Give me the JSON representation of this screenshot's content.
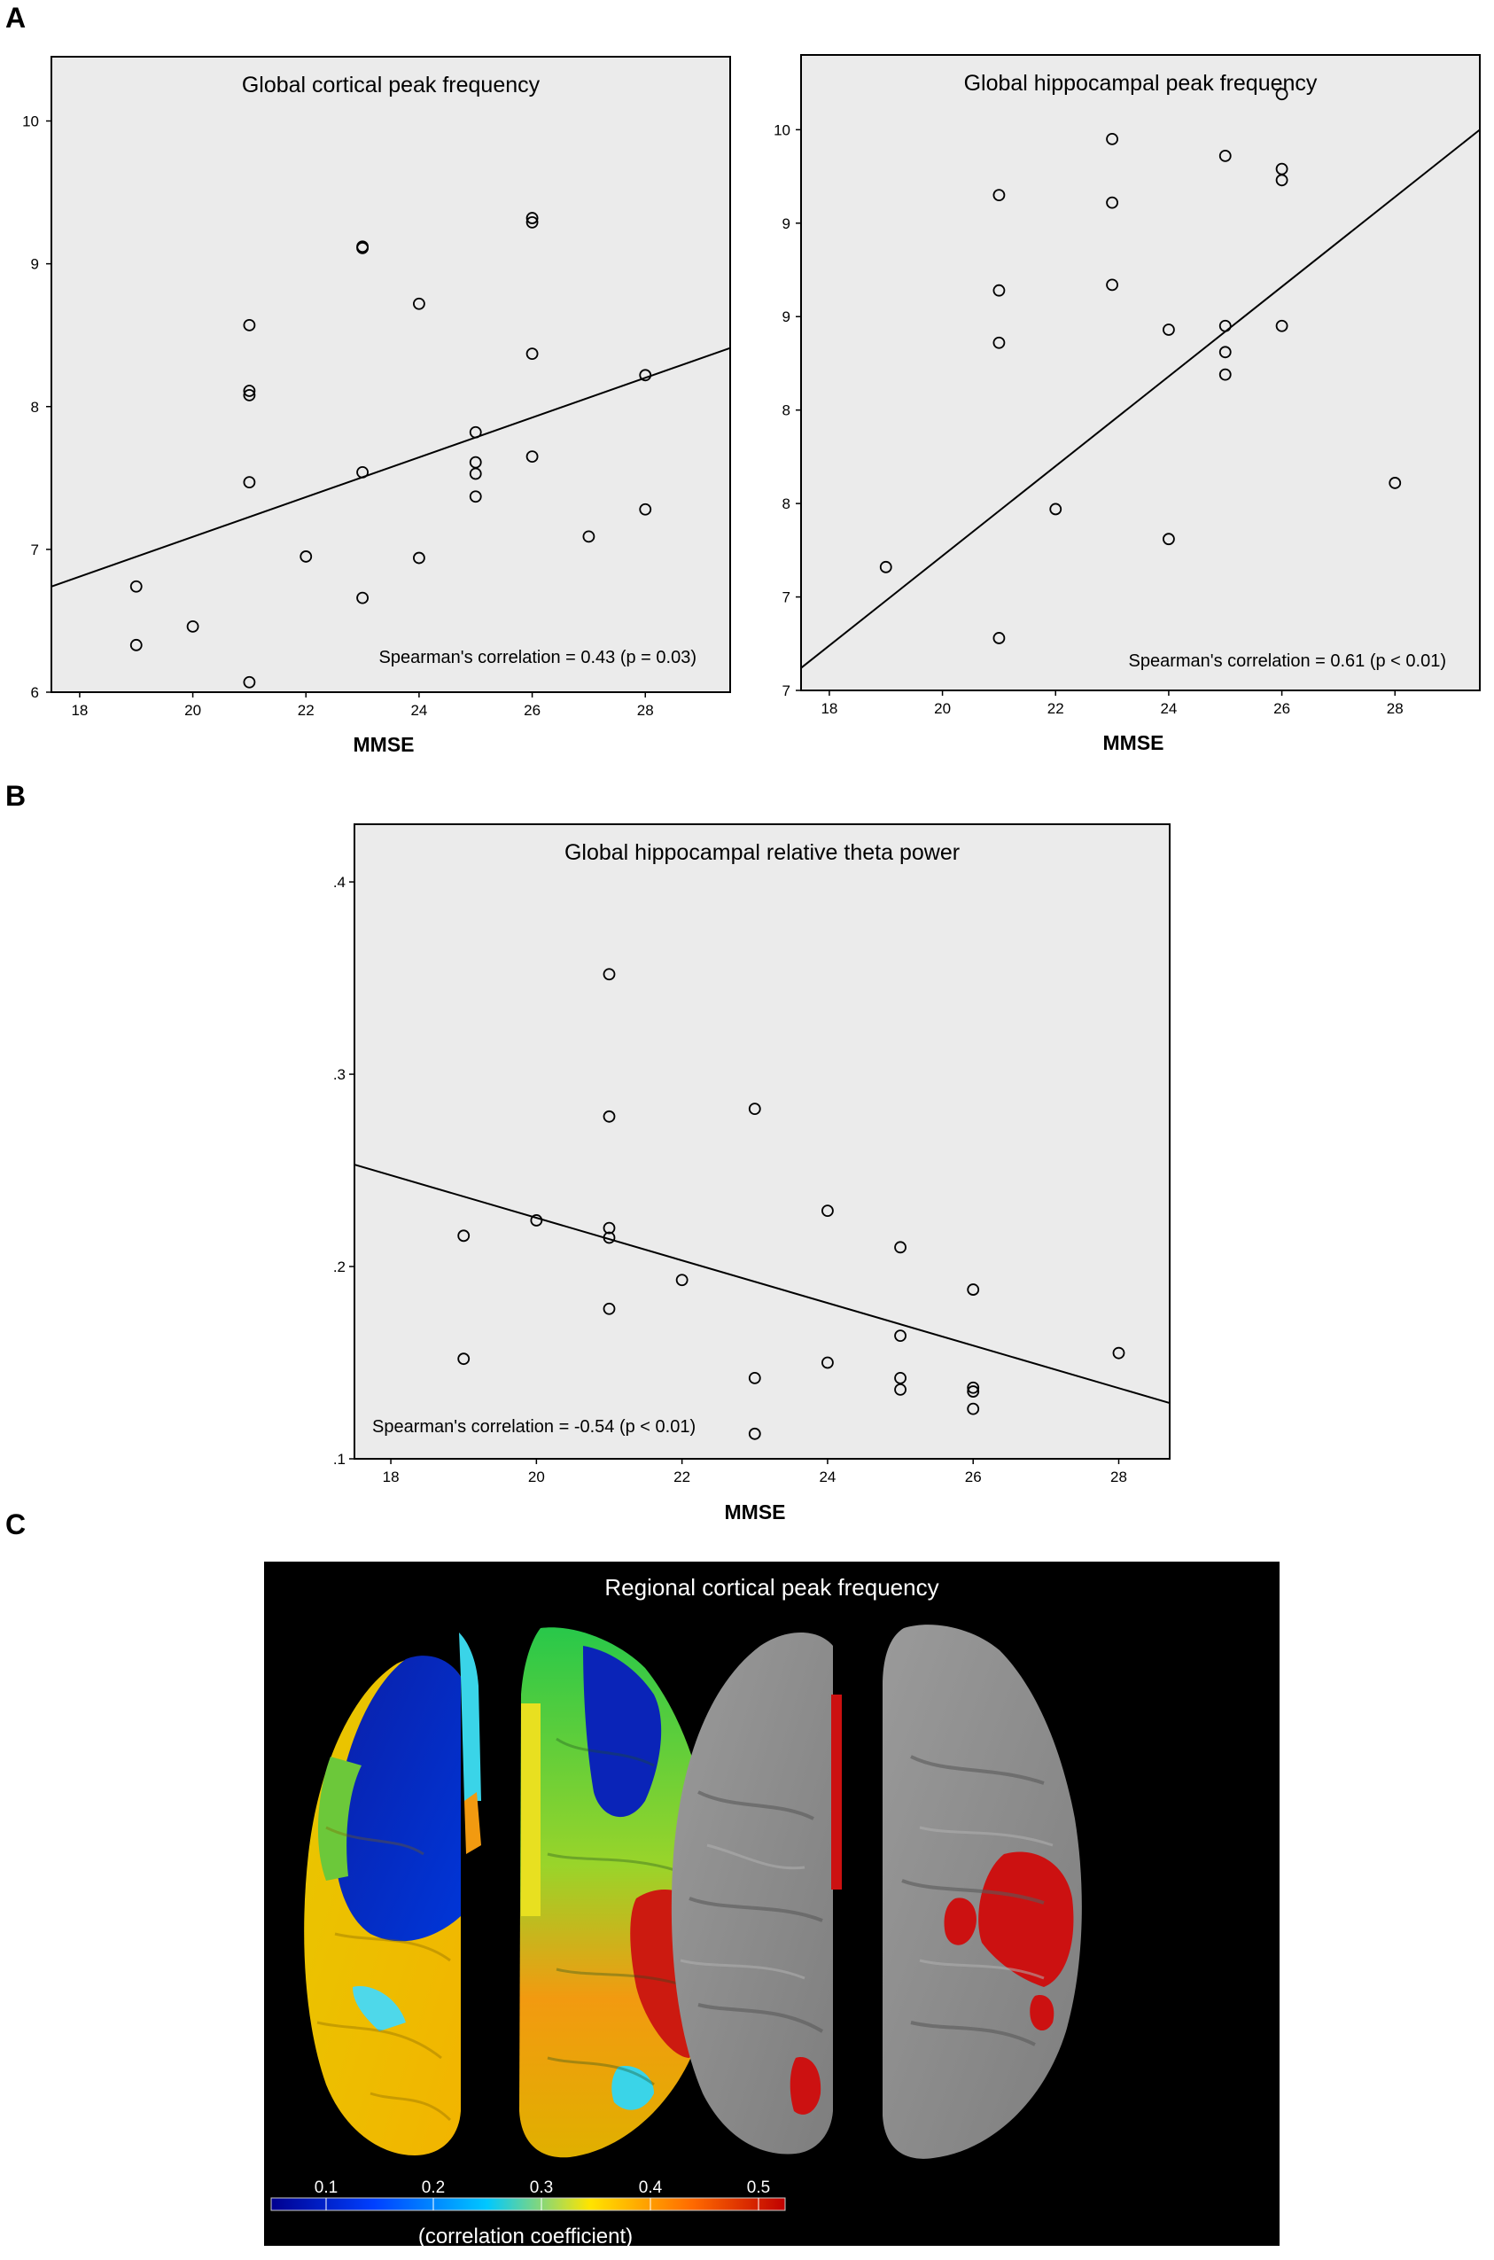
{
  "panels": {
    "a": "A",
    "b": "B",
    "c": "C"
  },
  "chart_data": [
    {
      "type": "scatter",
      "title": "Global cortical peak frequency",
      "xlabel": "MMSE",
      "ylabel": "",
      "xlim": [
        17.5,
        29.5
      ],
      "ylim": [
        6,
        10.45
      ],
      "xticks": [
        18,
        20,
        22,
        24,
        26,
        28
      ],
      "xtick_labels": [
        "18",
        "20",
        "22",
        "24",
        "26",
        "28"
      ],
      "yticks": [
        6,
        7,
        8,
        9,
        10
      ],
      "ytick_labels": [
        "6",
        "7",
        "8",
        "9",
        "10"
      ],
      "annotation": "Spearman's correlation = 0.43 (p = 0.03)",
      "fit_line": {
        "x": [
          17.5,
          29.5
        ],
        "y": [
          6.74,
          8.41
        ]
      },
      "points": [
        {
          "x": 19,
          "y": 6.74
        },
        {
          "x": 19,
          "y": 6.33
        },
        {
          "x": 20,
          "y": 6.46
        },
        {
          "x": 21,
          "y": 8.57
        },
        {
          "x": 21,
          "y": 8.11
        },
        {
          "x": 21,
          "y": 8.08
        },
        {
          "x": 21,
          "y": 7.47
        },
        {
          "x": 21,
          "y": 6.07
        },
        {
          "x": 22,
          "y": 6.95
        },
        {
          "x": 23,
          "y": 9.12
        },
        {
          "x": 23,
          "y": 9.11
        },
        {
          "x": 23,
          "y": 7.54
        },
        {
          "x": 23,
          "y": 6.66
        },
        {
          "x": 24,
          "y": 8.72
        },
        {
          "x": 24,
          "y": 6.94
        },
        {
          "x": 25,
          "y": 7.82
        },
        {
          "x": 25,
          "y": 7.61
        },
        {
          "x": 25,
          "y": 7.53
        },
        {
          "x": 25,
          "y": 7.37
        },
        {
          "x": 26,
          "y": 9.32
        },
        {
          "x": 26,
          "y": 9.29
        },
        {
          "x": 26,
          "y": 8.37
        },
        {
          "x": 26,
          "y": 7.65
        },
        {
          "x": 27,
          "y": 7.09
        },
        {
          "x": 28,
          "y": 8.22
        },
        {
          "x": 28,
          "y": 7.28
        }
      ]
    },
    {
      "type": "scatter",
      "title": "Global hippocampal peak frequency",
      "xlabel": "MMSE",
      "ylabel": "",
      "xlim": [
        17.5,
        29.5
      ],
      "ylim": [
        7,
        10.4
      ],
      "xticks": [
        18,
        20,
        22,
        24,
        26,
        28
      ],
      "xtick_labels": [
        "18",
        "20",
        "22",
        "24",
        "26",
        "28"
      ],
      "yticks": [
        7,
        7.5,
        8,
        8.5,
        9,
        9.5,
        10
      ],
      "ytick_labels": [
        "7",
        "7",
        "8",
        "8",
        "9",
        "9",
        "10"
      ],
      "annotation": "Spearman's correlation = 0.61 (p < 0.01)",
      "fit_line": {
        "x": [
          17.5,
          29.5
        ],
        "y": [
          7.12,
          10.0
        ]
      },
      "points": [
        {
          "x": 19,
          "y": 7.66
        },
        {
          "x": 21,
          "y": 9.65
        },
        {
          "x": 21,
          "y": 9.14
        },
        {
          "x": 21,
          "y": 8.86
        },
        {
          "x": 21,
          "y": 7.28
        },
        {
          "x": 22,
          "y": 7.97
        },
        {
          "x": 23,
          "y": 9.95
        },
        {
          "x": 23,
          "y": 9.61
        },
        {
          "x": 23,
          "y": 9.17
        },
        {
          "x": 24,
          "y": 8.93
        },
        {
          "x": 24,
          "y": 7.81
        },
        {
          "x": 25,
          "y": 9.86
        },
        {
          "x": 25,
          "y": 8.95
        },
        {
          "x": 25,
          "y": 8.81
        },
        {
          "x": 25,
          "y": 8.69
        },
        {
          "x": 26,
          "y": 10.19
        },
        {
          "x": 26,
          "y": 9.79
        },
        {
          "x": 26,
          "y": 9.73
        },
        {
          "x": 26,
          "y": 8.95
        },
        {
          "x": 28,
          "y": 8.11
        }
      ]
    },
    {
      "type": "scatter",
      "title": "Global hippocampal relative theta power",
      "xlabel": "MMSE",
      "ylabel": "",
      "xlim": [
        17.5,
        28.7
      ],
      "ylim": [
        0.1,
        0.43
      ],
      "xticks": [
        18,
        20,
        22,
        24,
        26,
        28
      ],
      "xtick_labels": [
        "18",
        "20",
        "22",
        "24",
        "26",
        "28"
      ],
      "yticks": [
        0.1,
        0.2,
        0.3,
        0.4
      ],
      "ytick_labels": [
        ".1",
        ".2",
        ".3",
        ".4"
      ],
      "annotation": "Spearman's correlation = -0.54 (p < 0.01)",
      "fit_line": {
        "x": [
          17.5,
          28.7
        ],
        "y": [
          0.253,
          0.129
        ]
      },
      "points": [
        {
          "x": 19,
          "y": 0.216
        },
        {
          "x": 19,
          "y": 0.152
        },
        {
          "x": 20,
          "y": 0.224
        },
        {
          "x": 21,
          "y": 0.352
        },
        {
          "x": 21,
          "y": 0.278
        },
        {
          "x": 21,
          "y": 0.22
        },
        {
          "x": 21,
          "y": 0.215
        },
        {
          "x": 21,
          "y": 0.178
        },
        {
          "x": 22,
          "y": 0.193
        },
        {
          "x": 23,
          "y": 0.282
        },
        {
          "x": 23,
          "y": 0.142
        },
        {
          "x": 23,
          "y": 0.113
        },
        {
          "x": 24,
          "y": 0.229
        },
        {
          "x": 24,
          "y": 0.15
        },
        {
          "x": 25,
          "y": 0.21
        },
        {
          "x": 25,
          "y": 0.164
        },
        {
          "x": 25,
          "y": 0.142
        },
        {
          "x": 25,
          "y": 0.136
        },
        {
          "x": 26,
          "y": 0.188
        },
        {
          "x": 26,
          "y": 0.137
        },
        {
          "x": 26,
          "y": 0.135
        },
        {
          "x": 26,
          "y": 0.126
        },
        {
          "x": 28,
          "y": 0.155
        }
      ]
    }
  ],
  "brain_map": {
    "title": "Regional cortical peak frequency",
    "colorbar_ticks": [
      "0.1",
      "0.2",
      "0.3",
      "0.4",
      "0.5"
    ],
    "colorbar_caption": "(correlation coefficient)",
    "colormap": [
      "#00008f",
      "#0040ff",
      "#00c8ff",
      "#ffe400",
      "#ff6a00",
      "#c00000"
    ],
    "significance_color": "#cc1111",
    "cortex_color": "#8f8f8f"
  }
}
